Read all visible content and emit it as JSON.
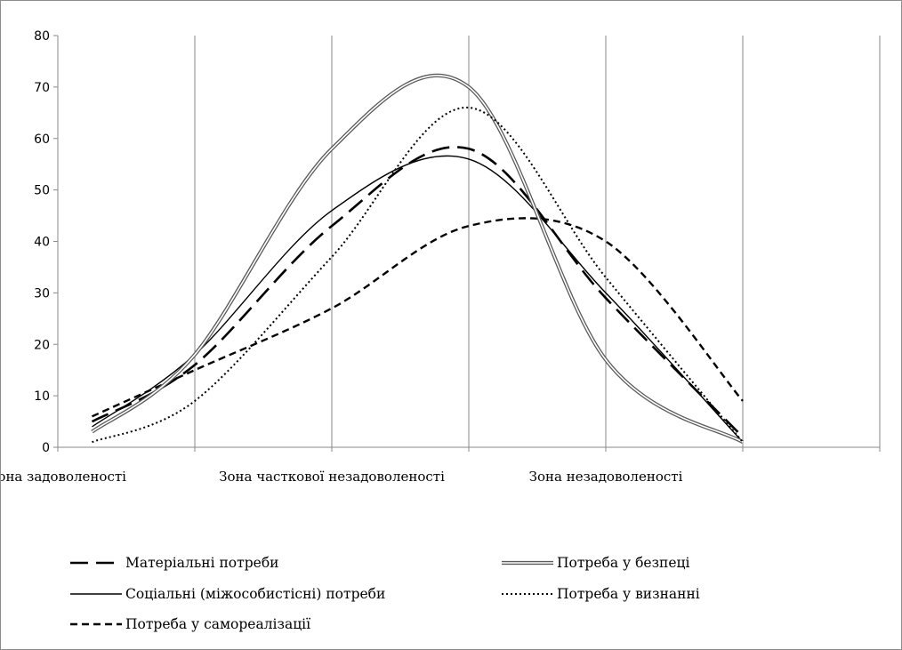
{
  "chart_data": {
    "type": "line",
    "title": "",
    "xlabel": "",
    "ylabel": "",
    "ylim": [
      0,
      80
    ],
    "yticks": [
      0,
      10,
      20,
      30,
      40,
      50,
      60,
      70,
      80
    ],
    "categories": [
      "Зона задоволеності",
      "Зона часткової незадоволеності",
      "Зона незадоволеності"
    ],
    "grid": {
      "vertical": true,
      "horizontal": false
    },
    "smooth": true,
    "x": [
      0.25,
      1,
      2,
      3,
      4,
      5
    ],
    "series": [
      {
        "name": "Матеріальні потреби",
        "values": [
          5,
          16,
          43,
          58,
          29,
          2
        ],
        "dash": "long-dash",
        "double": false,
        "color": "#000000"
      },
      {
        "name": "Соціальні (міжособистісні) потреби",
        "values": [
          4,
          18,
          46,
          56,
          30,
          1
        ],
        "dash": "solid",
        "double": false,
        "color": "#000000"
      },
      {
        "name": "Потреба у самореалізації",
        "values": [
          6,
          15,
          27,
          43,
          40,
          9
        ],
        "dash": "short-dash",
        "double": false,
        "color": "#000000"
      },
      {
        "name": "Потреба у безпеці",
        "values": [
          3,
          18,
          58,
          70,
          17,
          1
        ],
        "dash": "solid",
        "double": true,
        "color": "#5a5a5a"
      },
      {
        "name": "Потреба у визнанні",
        "values": [
          1,
          9,
          37,
          66,
          33,
          1
        ],
        "dash": "dotted",
        "double": false,
        "color": "#000000"
      }
    ],
    "legend_position": "bottom",
    "legend_columns": [
      [
        "Матеріальні потреби",
        "Соціальні (міжособистісні) потреби",
        "Потреба у самореалізації"
      ],
      [
        "Потреба у безпеці",
        "Потреба у визнанні"
      ]
    ]
  }
}
